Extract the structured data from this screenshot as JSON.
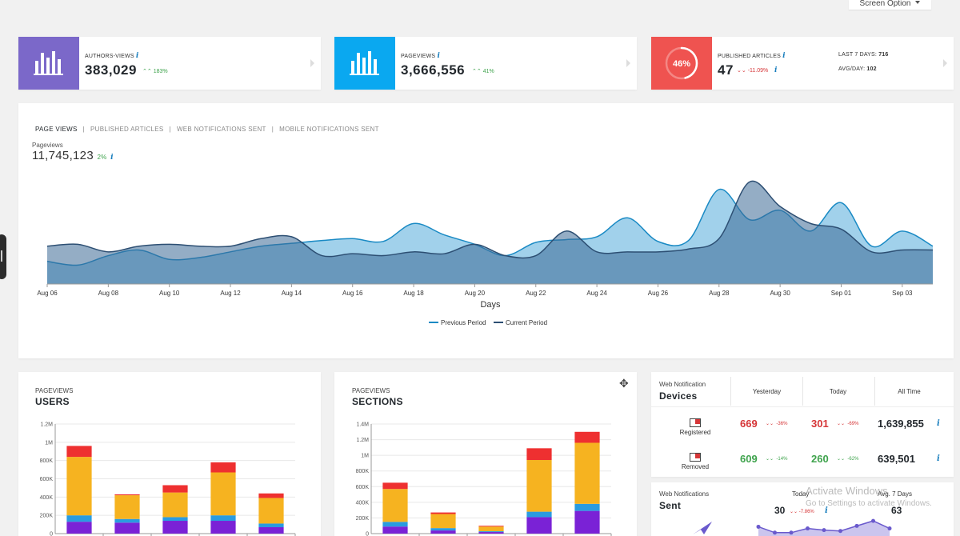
{
  "screen_options": {
    "label": "Screen Option"
  },
  "kpis": [
    {
      "label": "AUTHORS-VIEWS",
      "value": "383,029",
      "delta": "183%",
      "icon": "bar-chart-icon",
      "color": "#7b68c9"
    },
    {
      "label": "PAGEVIEWS",
      "value": "3,666,556",
      "delta": "41%",
      "icon": "bar-chart-icon",
      "color": "#0aa8f0"
    },
    {
      "label": "PUBLISHED ARTICLES",
      "value": "47",
      "delta": "-11.09%",
      "icon": "progress-ring-icon",
      "color": "#ef5350",
      "ring_text": "46%",
      "ring_fraction": 0.46,
      "last7_label": "LAST 7 DAYS:",
      "last7_value": "716",
      "avg_label": "AVG/DAY:",
      "avg_value": "102"
    }
  ],
  "main_chart": {
    "tabs": [
      "PAGE VIEWS",
      "PUBLISHED ARTICLES",
      "WEB NOTIFICATIONS SENT",
      "MOBILE NOTIFICATIONS SENT"
    ],
    "metric_label": "Pageviews",
    "metric_value": "11,745,123",
    "metric_delta": "2%",
    "xlabel": "Days",
    "x_ticks": [
      "Aug 06",
      "Aug 08",
      "Aug 10",
      "Aug 12",
      "Aug 14",
      "Aug 16",
      "Aug 18",
      "Aug 20",
      "Aug 22",
      "Aug 24",
      "Aug 26",
      "Aug 28",
      "Aug 30",
      "Sep 01",
      "Sep 03"
    ],
    "legend": [
      "Previous Period",
      "Current Period"
    ]
  },
  "chart_data": [
    {
      "type": "area",
      "xlabel": "Days",
      "x": [
        "Aug 06",
        "Aug 07",
        "Aug 08",
        "Aug 09",
        "Aug 10",
        "Aug 11",
        "Aug 12",
        "Aug 13",
        "Aug 14",
        "Aug 15",
        "Aug 16",
        "Aug 17",
        "Aug 18",
        "Aug 19",
        "Aug 20",
        "Aug 21",
        "Aug 22",
        "Aug 23",
        "Aug 24",
        "Aug 25",
        "Aug 26",
        "Aug 27",
        "Aug 28",
        "Aug 29",
        "Aug 30",
        "Aug 31",
        "Sep 01",
        "Sep 02",
        "Sep 03",
        "Sep 04"
      ],
      "series": [
        {
          "name": "Previous Period",
          "color": "#1a8ac4",
          "values": [
            24,
            20,
            30,
            36,
            26,
            28,
            34,
            40,
            43,
            46,
            48,
            45,
            64,
            52,
            42,
            30,
            44,
            47,
            50,
            70,
            45,
            46,
            100,
            68,
            78,
            56,
            86,
            40,
            56,
            40
          ]
        },
        {
          "name": "Current Period",
          "color": "#2d4f73",
          "values": [
            40,
            42,
            34,
            40,
            42,
            40,
            40,
            48,
            50,
            30,
            32,
            30,
            34,
            32,
            42,
            30,
            30,
            56,
            34,
            34,
            34,
            37,
            48,
            108,
            82,
            64,
            58,
            34,
            36,
            36
          ]
        }
      ],
      "legend": "bottom"
    },
    {
      "type": "bar",
      "title": "USERS",
      "stacked": true,
      "categories": [
        "",
        "",
        "",
        "",
        ""
      ],
      "ylim": [
        0,
        1200000
      ],
      "y_ticks": [
        "0",
        "200K",
        "400K",
        "600K",
        "800K",
        "1M",
        "1.2M"
      ],
      "series": [
        {
          "color": "#7a22d6",
          "values": [
            130000,
            120000,
            140000,
            140000,
            70000
          ]
        },
        {
          "color": "#2a9be0",
          "values": [
            70000,
            40000,
            40000,
            60000,
            40000
          ]
        },
        {
          "color": "#f6b320",
          "values": [
            640000,
            260000,
            270000,
            470000,
            280000
          ]
        },
        {
          "color": "#ee3030",
          "values": [
            120000,
            10000,
            80000,
            110000,
            50000
          ]
        }
      ]
    },
    {
      "type": "bar",
      "title": "SECTIONS",
      "stacked": true,
      "categories": [
        "",
        "",
        "",
        "",
        ""
      ],
      "ylim": [
        0,
        1400000
      ],
      "y_ticks": [
        "0",
        "200K",
        "400K",
        "600K",
        "800K",
        "1M",
        "1.2M",
        "1.4M"
      ],
      "series": [
        {
          "color": "#7a22d6",
          "values": [
            90000,
            40000,
            20000,
            210000,
            290000
          ]
        },
        {
          "color": "#2a9be0",
          "values": [
            60000,
            30000,
            10000,
            70000,
            90000
          ]
        },
        {
          "color": "#f6b320",
          "values": [
            420000,
            180000,
            60000,
            660000,
            780000
          ]
        },
        {
          "color": "#ee3030",
          "values": [
            80000,
            20000,
            10000,
            150000,
            140000
          ]
        }
      ]
    },
    {
      "type": "line",
      "title": "Sent",
      "series": [
        {
          "color": "#6a5acd",
          "values": [
            0.55,
            0.2,
            0.2,
            0.45,
            0.35,
            0.3,
            0.6,
            0.9,
            0.45
          ]
        }
      ]
    }
  ],
  "users_panel": {
    "small": "PAGEVIEWS",
    "title": "USERS"
  },
  "sections_panel": {
    "small": "PAGEVIEWS",
    "title": "SECTIONS"
  },
  "devices_panel": {
    "small": "Web Notification",
    "title": "Devices",
    "cols": [
      "Yesterday",
      "Today",
      "All Time"
    ],
    "rows": [
      {
        "label": "Registered",
        "icon": "monitor-icon",
        "yesterday": "669",
        "y_delta": "-36%",
        "today": "301",
        "t_delta": "-69%",
        "all": "1,639,855"
      },
      {
        "label": "Removed",
        "icon": "monitor-icon",
        "yesterday": "609",
        "y_delta": "-14%",
        "today": "260",
        "t_delta": "-62%",
        "all": "639,501"
      }
    ]
  },
  "sent_panel": {
    "small": "Web Notifications",
    "title": "Sent",
    "today_label": "Today",
    "today_value": "30",
    "today_delta": "-7.86%",
    "avg_label": "Avg. 7 Days",
    "avg_value": "63"
  },
  "watermark": {
    "line1": "Activate Windows",
    "line2": "Go to Settings to activate Windows."
  }
}
